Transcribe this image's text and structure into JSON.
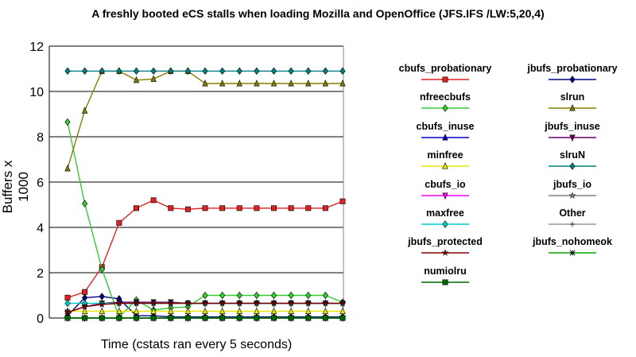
{
  "chart_data": {
    "type": "line",
    "title": "A freshly booted eCS stalls when loading Mozilla and OpenOffice (JFS.IFS /LW:5,20,4)",
    "xlabel": "Time (cstats ran every 5 seconds)",
    "ylabel": "Buffers x 1000",
    "ylim": [
      0,
      12
    ],
    "yticks": [
      "0",
      "2",
      "4",
      "6",
      "8",
      "10",
      "12"
    ],
    "grid": true,
    "legend_position": "right",
    "x": [
      1,
      2,
      3,
      4,
      5,
      6,
      7,
      8,
      9,
      10,
      11,
      12,
      13,
      14,
      15,
      16,
      17
    ],
    "series": [
      {
        "name": "cbufs_probationary",
        "color": "#dd2222",
        "marker": "square",
        "values": [
          0.9,
          1.15,
          2.25,
          4.2,
          4.85,
          5.2,
          4.85,
          4.8,
          4.85,
          4.85,
          4.85,
          4.85,
          4.85,
          4.85,
          4.85,
          4.85,
          5.15
        ]
      },
      {
        "name": "jbufs_probationary",
        "color": "#000080",
        "marker": "diamond",
        "values": [
          0.1,
          0.9,
          0.95,
          0.85,
          0.1,
          0.1,
          0.05,
          0.05,
          0.05,
          0.05,
          0.05,
          0.05,
          0.05,
          0.05,
          0.05,
          0.05,
          0.05
        ]
      },
      {
        "name": "nfreecbufs",
        "color": "#33cc33",
        "marker": "diamond",
        "values": [
          8.65,
          5.05,
          2.15,
          0.05,
          0.8,
          0.35,
          0.45,
          0.5,
          1.0,
          1.0,
          1.0,
          1.0,
          1.0,
          1.0,
          1.0,
          1.0,
          0.7
        ]
      },
      {
        "name": "slrun",
        "color": "#808000",
        "marker": "triangle",
        "values": [
          6.6,
          9.15,
          10.9,
          10.9,
          10.5,
          10.55,
          10.9,
          10.9,
          10.35,
          10.35,
          10.35,
          10.35,
          10.35,
          10.35,
          10.35,
          10.35,
          10.35
        ]
      },
      {
        "name": "cbufs_inuse",
        "color": "#0000cc",
        "marker": "triangle",
        "values": [
          0.0,
          0.0,
          0.0,
          0.0,
          0.0,
          0.0,
          0.0,
          0.0,
          0.0,
          0.0,
          0.0,
          0.0,
          0.0,
          0.0,
          0.0,
          0.0,
          0.0
        ]
      },
      {
        "name": "jbufs_inuse",
        "color": "#660066",
        "marker": "triangle-down",
        "values": [
          0.25,
          0.5,
          0.65,
          0.7,
          0.7,
          0.7,
          0.7,
          0.65,
          0.65,
          0.65,
          0.65,
          0.65,
          0.65,
          0.65,
          0.65,
          0.65,
          0.65
        ]
      },
      {
        "name": "minfree",
        "color": "#e8e800",
        "marker": "triangle",
        "values": [
          0.3,
          0.3,
          0.3,
          0.3,
          0.3,
          0.3,
          0.3,
          0.3,
          0.3,
          0.3,
          0.3,
          0.3,
          0.3,
          0.3,
          0.3,
          0.3,
          0.3
        ]
      },
      {
        "name": "slruN",
        "color": "#008080",
        "marker": "diamond",
        "values": [
          10.9,
          10.9,
          10.9,
          10.9,
          10.9,
          10.9,
          10.9,
          10.9,
          10.9,
          10.9,
          10.9,
          10.9,
          10.9,
          10.9,
          10.9,
          10.9,
          10.9
        ]
      },
      {
        "name": "cbufs_io",
        "color": "#ff00ff",
        "marker": "triangle-down",
        "values": [
          0.0,
          0.0,
          0.0,
          0.0,
          0.0,
          0.0,
          0.0,
          0.0,
          0.0,
          0.0,
          0.0,
          0.0,
          0.0,
          0.0,
          0.0,
          0.0,
          0.0
        ]
      },
      {
        "name": "jbufs_io",
        "color": "#808080",
        "marker": "star",
        "values": [
          0.0,
          0.0,
          0.0,
          0.0,
          0.0,
          0.0,
          0.0,
          0.0,
          0.0,
          0.0,
          0.0,
          0.0,
          0.0,
          0.0,
          0.0,
          0.0,
          0.0
        ]
      },
      {
        "name": "maxfree",
        "color": "#00cccc",
        "marker": "diamond",
        "values": [
          0.65,
          0.65,
          0.65,
          0.65,
          0.65,
          0.65,
          0.65,
          0.65,
          0.65,
          0.65,
          0.65,
          0.65,
          0.65,
          0.65,
          0.65,
          0.65,
          0.65
        ]
      },
      {
        "name": "Other",
        "color": "#999999",
        "marker": "plus",
        "values": [
          0.0,
          0.0,
          0.0,
          0.0,
          0.0,
          0.0,
          0.0,
          0.0,
          0.0,
          0.0,
          0.0,
          0.0,
          0.0,
          0.0,
          0.0,
          0.0,
          0.0
        ]
      },
      {
        "name": "jbufs_protected",
        "color": "#800000",
        "marker": "star",
        "values": [
          0.25,
          0.5,
          0.6,
          0.65,
          0.65,
          0.65,
          0.65,
          0.65,
          0.65,
          0.65,
          0.65,
          0.65,
          0.65,
          0.65,
          0.65,
          0.65,
          0.65
        ]
      },
      {
        "name": "jbufs_nohomeok",
        "color": "#00aa00",
        "marker": "asterisk",
        "values": [
          0.0,
          0.0,
          0.0,
          0.0,
          0.0,
          0.0,
          0.0,
          0.0,
          0.0,
          0.0,
          0.0,
          0.0,
          0.0,
          0.0,
          0.0,
          0.0,
          0.0
        ]
      },
      {
        "name": "numiolru",
        "color": "#006600",
        "marker": "square",
        "values": [
          0.0,
          0.0,
          0.0,
          0.0,
          0.0,
          0.0,
          0.0,
          0.0,
          0.0,
          0.0,
          0.0,
          0.0,
          0.0,
          0.0,
          0.0,
          0.0,
          0.0
        ]
      }
    ]
  }
}
